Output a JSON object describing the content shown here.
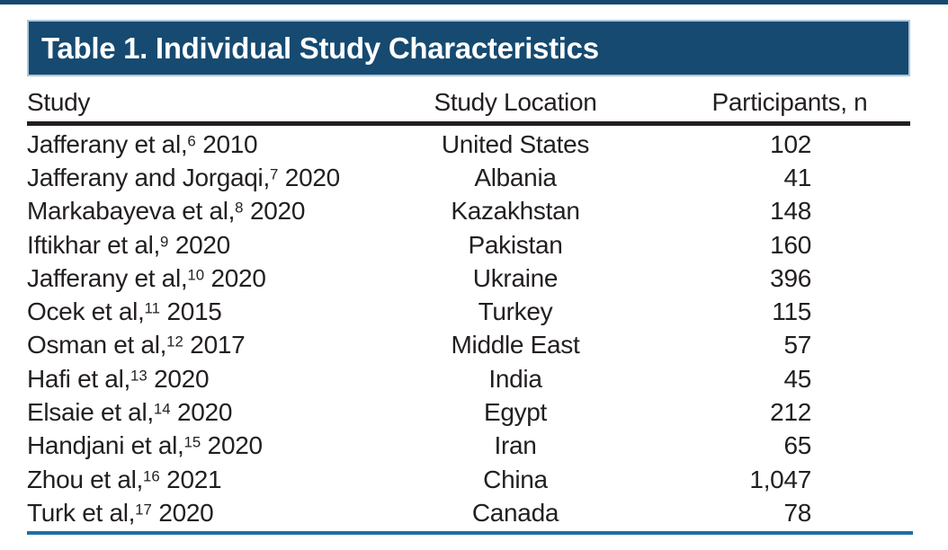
{
  "colors": {
    "banner_navy": "#164a70",
    "banner_edge_light_blue": "#aac7dc",
    "header_rule_black": "#231f20",
    "bottom_rule_blue": "#1e6fa4",
    "body_text": "#231f20",
    "title_text": "#ffffff"
  },
  "table": {
    "title": "Table 1. Individual Study Characteristics",
    "columns": [
      "Study",
      "Study Location",
      "Participants, n"
    ],
    "rows": [
      {
        "study_author": "Jafferany et al,",
        "ref": "6",
        "year": "2010",
        "location": "United States",
        "participants": "102"
      },
      {
        "study_author": "Jafferany and Jorgaqi,",
        "ref": "7",
        "year": "2020",
        "location": "Albania",
        "participants": "41"
      },
      {
        "study_author": "Markabayeva et al,",
        "ref": "8",
        "year": "2020",
        "location": "Kazakhstan",
        "participants": "148"
      },
      {
        "study_author": "Iftikhar et al,",
        "ref": "9",
        "year": "2020",
        "location": "Pakistan",
        "participants": "160"
      },
      {
        "study_author": "Jafferany et al,",
        "ref": "10",
        "year": "2020",
        "location": "Ukraine",
        "participants": "396"
      },
      {
        "study_author": "Ocek et al,",
        "ref": "11",
        "year": "2015",
        "location": "Turkey",
        "participants": "115"
      },
      {
        "study_author": "Osman et al,",
        "ref": "12",
        "year": "2017",
        "location": "Middle East",
        "participants": "57"
      },
      {
        "study_author": "Hafi et al,",
        "ref": "13",
        "year": "2020",
        "location": "India",
        "participants": "45"
      },
      {
        "study_author": "Elsaie et al,",
        "ref": "14",
        "year": "2020",
        "location": "Egypt",
        "participants": "212"
      },
      {
        "study_author": "Handjani et al,",
        "ref": "15",
        "year": "2020",
        "location": "Iran",
        "participants": "65"
      },
      {
        "study_author": "Zhou et al,",
        "ref": "16",
        "year": "2021",
        "location": "China",
        "participants": "1,047"
      },
      {
        "study_author": "Turk et al,",
        "ref": "17",
        "year": "2020",
        "location": "Canada",
        "participants": "78"
      }
    ]
  }
}
